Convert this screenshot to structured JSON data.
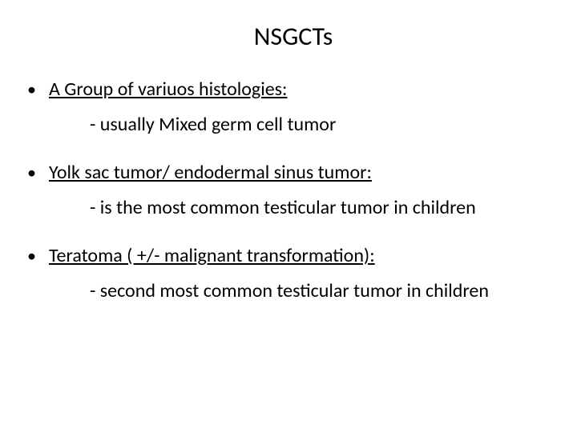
{
  "slide": {
    "title": "NSGCTs",
    "items": [
      {
        "heading": "A Group of variuos histologies:",
        "sub": "- usually Mixed germ cell tumor"
      },
      {
        "heading": "Yolk sac tumor/ endodermal sinus tumor:",
        "sub": "- is the most common testicular tumor in children"
      },
      {
        "heading": "Teratoma ( +/- malignant transformation):",
        "sub": "- second most common testicular tumor in children"
      }
    ],
    "colors": {
      "background": "#ffffff",
      "text": "#000000"
    },
    "fontsizes": {
      "title": 32,
      "body": 24
    }
  }
}
